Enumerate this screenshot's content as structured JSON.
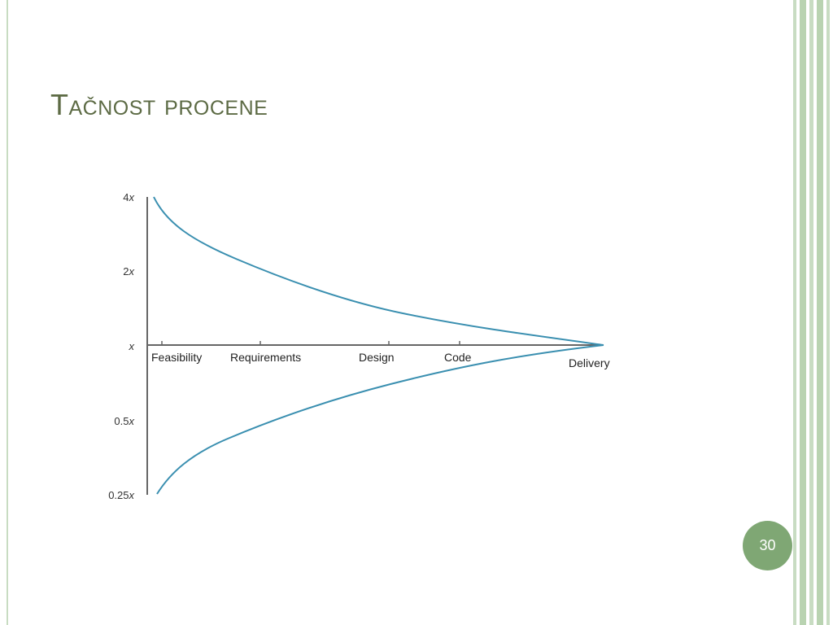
{
  "slide": {
    "title": "Tačnost procene",
    "page_number": "30",
    "colors": {
      "title": "#5d6b45",
      "curve": "#3a8fb0",
      "axis": "#666666",
      "badge": "#7fa774",
      "stripe": "#b9d3b1"
    }
  },
  "diagram": {
    "y_labels": [
      {
        "num": "4",
        "unit": "x"
      },
      {
        "num": "2",
        "unit": "x"
      },
      {
        "num": "",
        "unit": "x"
      },
      {
        "num": "0.5",
        "unit": "x"
      },
      {
        "num": "0.25",
        "unit": "x"
      }
    ],
    "phases": [
      "Feasibility",
      "Requirements",
      "Design",
      "Code",
      "Delivery"
    ]
  }
}
